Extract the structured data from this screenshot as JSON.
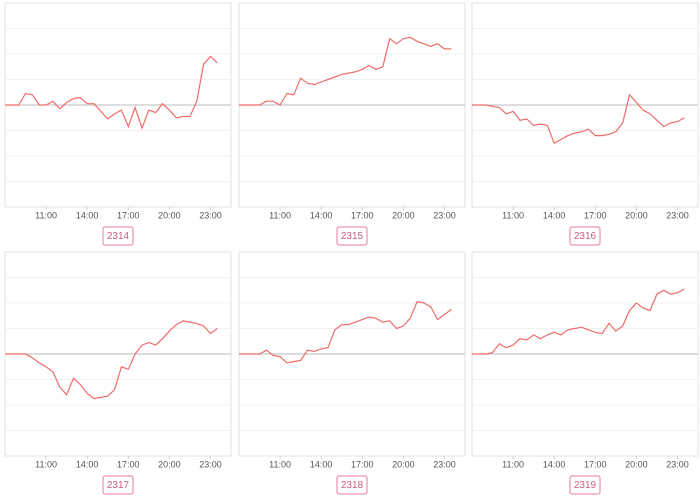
{
  "chart_data": [
    {
      "type": "line",
      "title": "2314",
      "color": "#f06b6b",
      "grid": true,
      "x": [
        8,
        8.5,
        9,
        9.5,
        10,
        10.5,
        11,
        11.5,
        12,
        12.5,
        13,
        13.5,
        14,
        14.5,
        15,
        15.5,
        16,
        16.5,
        17,
        17.5,
        18,
        18.5,
        19,
        19.5,
        20,
        20.5,
        21,
        21.5,
        22,
        22.5,
        23,
        23.5
      ],
      "values": [
        0,
        0,
        0,
        0.45,
        0.4,
        0,
        0,
        0.15,
        -0.15,
        0.1,
        0.25,
        0.3,
        0.05,
        0.05,
        -0.25,
        -0.55,
        -0.35,
        -0.2,
        -0.85,
        -0.1,
        -0.9,
        -0.2,
        -0.3,
        0.05,
        -0.2,
        -0.5,
        -0.45,
        -0.45,
        0.15,
        1.6,
        1.9,
        1.65
      ],
      "xlim": [
        8,
        24.5
      ],
      "ylim": [
        -4,
        4
      ],
      "xticks": [
        {
          "value": 11,
          "label": "11:00"
        },
        {
          "value": 14,
          "label": "14:00"
        },
        {
          "value": 17,
          "label": "17:00"
        },
        {
          "value": 20,
          "label": "20:00"
        },
        {
          "value": 23,
          "label": "23:00"
        }
      ],
      "yticks": [
        -3,
        -2,
        -1,
        0,
        1,
        2,
        3
      ]
    },
    {
      "type": "line",
      "title": "2315",
      "color": "#f06b6b",
      "grid": true,
      "x": [
        8,
        8.5,
        9,
        9.5,
        10,
        10.5,
        11,
        11.5,
        12,
        12.5,
        13,
        13.5,
        14,
        14.5,
        15,
        15.5,
        16,
        16.5,
        17,
        17.5,
        18,
        18.5,
        19,
        19.5,
        20,
        20.5,
        21,
        21.5,
        22,
        22.5,
        23,
        23.5
      ],
      "values": [
        0,
        0,
        0,
        0,
        0.15,
        0.15,
        0,
        0.45,
        0.4,
        1.05,
        0.85,
        0.8,
        0.9,
        1.0,
        1.1,
        1.2,
        1.25,
        1.3,
        1.4,
        1.55,
        1.4,
        1.5,
        2.6,
        2.4,
        2.6,
        2.65,
        2.5,
        2.4,
        2.3,
        2.4,
        2.2,
        2.2
      ],
      "xlim": [
        8,
        24.5
      ],
      "ylim": [
        -4,
        4
      ],
      "xticks": [
        {
          "value": 11,
          "label": "11:00"
        },
        {
          "value": 14,
          "label": "14:00"
        },
        {
          "value": 17,
          "label": "17:00"
        },
        {
          "value": 20,
          "label": "20:00"
        },
        {
          "value": 23,
          "label": "23:00"
        }
      ],
      "yticks": [
        -3,
        -2,
        -1,
        0,
        1,
        2,
        3
      ]
    },
    {
      "type": "line",
      "title": "2316",
      "color": "#f06b6b",
      "grid": true,
      "x": [
        8,
        8.5,
        9,
        9.5,
        10,
        10.5,
        11,
        11.5,
        12,
        12.5,
        13,
        13.5,
        14,
        14.5,
        15,
        15.5,
        16,
        16.5,
        17,
        17.5,
        18,
        18.5,
        19,
        19.5,
        20,
        20.5,
        21,
        21.5,
        22,
        22.5,
        23,
        23.5
      ],
      "values": [
        0,
        0,
        0,
        -0.05,
        -0.1,
        -0.35,
        -0.25,
        -0.6,
        -0.55,
        -0.8,
        -0.75,
        -0.8,
        -1.5,
        -1.35,
        -1.2,
        -1.1,
        -1.05,
        -0.95,
        -1.2,
        -1.2,
        -1.15,
        -1.05,
        -0.7,
        0.4,
        0.1,
        -0.2,
        -0.35,
        -0.6,
        -0.85,
        -0.7,
        -0.65,
        -0.5
      ],
      "xlim": [
        8,
        24.5
      ],
      "ylim": [
        -4,
        4
      ],
      "xticks": [
        {
          "value": 11,
          "label": "11:00"
        },
        {
          "value": 14,
          "label": "14:00"
        },
        {
          "value": 17,
          "label": "17:00"
        },
        {
          "value": 20,
          "label": "20:00"
        },
        {
          "value": 23,
          "label": "23:00"
        }
      ],
      "yticks": [
        -3,
        -2,
        -1,
        0,
        1,
        2,
        3
      ]
    },
    {
      "type": "line",
      "title": "2317",
      "color": "#f06b6b",
      "grid": true,
      "x": [
        8,
        8.5,
        9,
        9.5,
        10,
        10.5,
        11,
        11.5,
        12,
        12.5,
        13,
        13.5,
        14,
        14.5,
        15,
        15.5,
        16,
        16.5,
        17,
        17.5,
        18,
        18.5,
        19,
        19.5,
        20,
        20.5,
        21,
        21.5,
        22,
        22.5,
        23,
        23.5
      ],
      "values": [
        0,
        0,
        0,
        0,
        -0.15,
        -0.35,
        -0.5,
        -0.7,
        -1.3,
        -1.6,
        -0.95,
        -1.2,
        -1.55,
        -1.75,
        -1.7,
        -1.65,
        -1.4,
        -0.5,
        -0.6,
        0,
        0.35,
        0.45,
        0.35,
        0.6,
        0.9,
        1.15,
        1.3,
        1.25,
        1.2,
        1.1,
        0.8,
        1.0
      ],
      "xlim": [
        8,
        24.5
      ],
      "ylim": [
        -4,
        4
      ],
      "xticks": [
        {
          "value": 11,
          "label": "11:00"
        },
        {
          "value": 14,
          "label": "14:00"
        },
        {
          "value": 17,
          "label": "17:00"
        },
        {
          "value": 20,
          "label": "20:00"
        },
        {
          "value": 23,
          "label": "23:00"
        }
      ],
      "yticks": [
        -3,
        -2,
        -1,
        0,
        1,
        2,
        3
      ]
    },
    {
      "type": "line",
      "title": "2318",
      "color": "#f06b6b",
      "grid": true,
      "x": [
        8,
        8.5,
        9,
        9.5,
        10,
        10.5,
        11,
        11.5,
        12,
        12.5,
        13,
        13.5,
        14,
        14.5,
        15,
        15.5,
        16,
        16.5,
        17,
        17.5,
        18,
        18.5,
        19,
        19.5,
        20,
        20.5,
        21,
        21.5,
        22,
        22.5,
        23,
        23.5
      ],
      "values": [
        0,
        0,
        0,
        0,
        0.15,
        -0.05,
        -0.1,
        -0.35,
        -0.3,
        -0.25,
        0.15,
        0.1,
        0.2,
        0.25,
        0.95,
        1.15,
        1.15,
        1.25,
        1.35,
        1.45,
        1.4,
        1.25,
        1.3,
        1.0,
        1.1,
        1.4,
        2.05,
        2.0,
        1.85,
        1.35,
        1.55,
        1.75
      ],
      "xlim": [
        8,
        24.5
      ],
      "ylim": [
        -4,
        4
      ],
      "xticks": [
        {
          "value": 11,
          "label": "11:00"
        },
        {
          "value": 14,
          "label": "14:00"
        },
        {
          "value": 17,
          "label": "17:00"
        },
        {
          "value": 20,
          "label": "20:00"
        },
        {
          "value": 23,
          "label": "23:00"
        }
      ],
      "yticks": [
        -3,
        -2,
        -1,
        0,
        1,
        2,
        3
      ]
    },
    {
      "type": "line",
      "title": "2319",
      "color": "#f06b6b",
      "grid": true,
      "x": [
        8,
        8.5,
        9,
        9.5,
        10,
        10.5,
        11,
        11.5,
        12,
        12.5,
        13,
        13.5,
        14,
        14.5,
        15,
        15.5,
        16,
        16.5,
        17,
        17.5,
        18,
        18.5,
        19,
        19.5,
        20,
        20.5,
        21,
        21.5,
        22,
        22.5,
        23,
        23.5
      ],
      "values": [
        0,
        0,
        0,
        0.05,
        0.4,
        0.25,
        0.35,
        0.6,
        0.55,
        0.75,
        0.6,
        0.75,
        0.85,
        0.75,
        0.95,
        1.0,
        1.05,
        0.95,
        0.85,
        0.8,
        1.2,
        0.9,
        1.1,
        1.7,
        2.0,
        1.8,
        1.7,
        2.35,
        2.5,
        2.35,
        2.4,
        2.55
      ],
      "xlim": [
        8,
        24.5
      ],
      "ylim": [
        -4,
        4
      ],
      "xticks": [
        {
          "value": 11,
          "label": "11:00"
        },
        {
          "value": 14,
          "label": "14:00"
        },
        {
          "value": 17,
          "label": "17:00"
        },
        {
          "value": 20,
          "label": "20:00"
        },
        {
          "value": 23,
          "label": "23:00"
        }
      ],
      "yticks": [
        -3,
        -2,
        -1,
        0,
        1,
        2,
        3
      ]
    }
  ]
}
